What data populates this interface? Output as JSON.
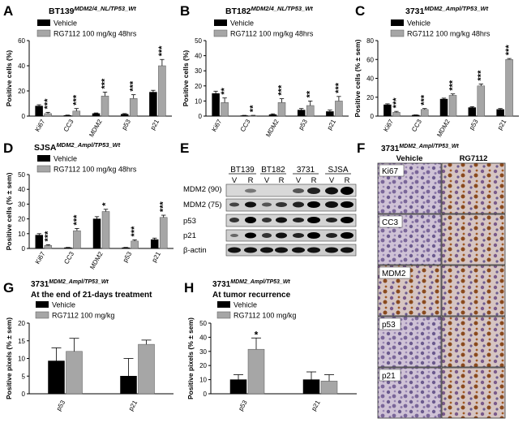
{
  "panels": {
    "A": {
      "letter": "A",
      "title_main": "BT139",
      "title_sup": "MDM2/4_NL/TP53_Wt"
    },
    "B": {
      "letter": "B",
      "title_main": "BT182",
      "title_sup": "MDM2/4_NL/TP53_Wt"
    },
    "C": {
      "letter": "C",
      "title_main": "3731",
      "title_sup": "MDM2_Ampl/TP53_Wt"
    },
    "D": {
      "letter": "D",
      "title_main": "SJSA",
      "title_sup": "MDM2_Ampl/TP53_Wt"
    },
    "E": {
      "letter": "E"
    },
    "F": {
      "letter": "F",
      "title_main": "3731",
      "title_sup": "MDM2_Ampl/TP53_Wt",
      "col_vehicle": "Vehicle",
      "col_rg": "RG7112"
    },
    "G": {
      "letter": "G",
      "title_main": "3731",
      "title_sup": "MDM2_Ampl/TP53_Wt",
      "subtitle": "At the end of 21-days treatment"
    },
    "H": {
      "letter": "H",
      "title_main": "3731",
      "title_sup": "MDM2_Ampl/TP53_Wt",
      "subtitle": "At tumor recurrence"
    }
  },
  "legend": {
    "vehicle": "Vehicle",
    "rg_48": "RG7112 100 mg/kg 48hrs",
    "rg": "RG7112 100 mg/kg"
  },
  "colors": {
    "vehicle": "#000000",
    "rg7112": "#a6a6a6"
  },
  "blot": {
    "groups": [
      "BT139",
      "BT182",
      "3731",
      "SJSA"
    ],
    "lanes": [
      "V",
      "R"
    ],
    "rows": [
      "MDM2 (90)",
      "MDM2 (75)",
      "p53",
      "p21",
      "β-actin"
    ]
  },
  "ihc_rows": [
    "Ki67",
    "CC3",
    "MDM2",
    "p53",
    "p21"
  ],
  "chart_data": [
    {
      "panel": "A",
      "type": "bar",
      "ylabel": "Positive cells (%)",
      "categories": [
        "Ki67",
        "CC3",
        "MDM2",
        "p53",
        "p21"
      ],
      "ylim": [
        0,
        60
      ],
      "yticks": [
        0,
        20,
        40,
        60
      ],
      "series": [
        {
          "name": "Vehicle",
          "values": [
            8,
            0.5,
            2,
            1.5,
            19
          ],
          "err": [
            1,
            0.3,
            0.5,
            0.5,
            1.5
          ]
        },
        {
          "name": "RG7112 100 mg/kg 48hrs",
          "values": [
            2,
            4,
            16,
            14,
            40
          ],
          "err": [
            1,
            2,
            3,
            3,
            5
          ]
        }
      ],
      "sig": [
        "***",
        "***",
        "***",
        "***",
        "***"
      ]
    },
    {
      "panel": "B",
      "type": "bar",
      "ylabel": "Positive cells (%)",
      "categories": [
        "Ki67",
        "CC3",
        "MDM2",
        "p53",
        "p21"
      ],
      "ylim": [
        0,
        50
      ],
      "yticks": [
        0,
        10,
        20,
        30,
        40,
        50
      ],
      "series": [
        {
          "name": "Vehicle",
          "values": [
            15,
            0.3,
            1,
            4,
            3
          ],
          "err": [
            1.5,
            0.2,
            0.5,
            1,
            1
          ]
        },
        {
          "name": "RG7112 100 mg/kg 48hrs",
          "values": [
            9,
            0.3,
            9,
            7,
            10
          ],
          "err": [
            3,
            0.2,
            2.5,
            3,
            3
          ]
        }
      ],
      "sig": [
        "**",
        "**",
        "***",
        "**",
        "***"
      ]
    },
    {
      "panel": "C",
      "type": "bar",
      "ylabel": "Positive cells (% ± sem)",
      "categories": [
        "Ki67",
        "CC3",
        "MDM2",
        "p53",
        "p21"
      ],
      "ylim": [
        0,
        80
      ],
      "yticks": [
        0,
        20,
        40,
        60,
        80
      ],
      "series": [
        {
          "name": "Vehicle",
          "values": [
            12,
            1,
            18,
            9,
            7
          ],
          "err": [
            1,
            0.3,
            1,
            1,
            1
          ]
        },
        {
          "name": "RG7112 100 mg/kg 48hrs",
          "values": [
            4,
            7,
            22,
            32,
            60
          ],
          "err": [
            1,
            1,
            1.5,
            2,
            1
          ]
        }
      ],
      "sig": [
        "***",
        "***",
        "***",
        "***",
        "***"
      ]
    },
    {
      "panel": "D",
      "type": "bar",
      "ylabel": "Positive cells (% ± sem)",
      "categories": [
        "Ki67",
        "CC3",
        "MDM2",
        "p53",
        "p21"
      ],
      "ylim": [
        0,
        50
      ],
      "yticks": [
        0,
        10,
        20,
        30,
        40,
        50
      ],
      "series": [
        {
          "name": "Vehicle",
          "values": [
            9,
            0.5,
            20,
            0.5,
            6
          ],
          "err": [
            1,
            0.2,
            1.5,
            0.2,
            1
          ]
        },
        {
          "name": "RG7112 100 mg/kg 48hrs",
          "values": [
            2,
            12,
            25,
            5,
            21
          ],
          "err": [
            0.5,
            1.5,
            1.5,
            0.8,
            1.5
          ]
        }
      ],
      "sig": [
        "***",
        "***",
        "*",
        "***",
        "***"
      ]
    },
    {
      "panel": "G",
      "type": "bar",
      "ylabel": "Positive pixels (% ± sem)",
      "categories": [
        "p53",
        "p21"
      ],
      "ylim": [
        0,
        20
      ],
      "yticks": [
        0,
        5,
        10,
        15,
        20
      ],
      "series": [
        {
          "name": "Vehicle",
          "values": [
            9.3,
            5
          ],
          "err": [
            3.7,
            5
          ]
        },
        {
          "name": "RG7112 100 mg/kg",
          "values": [
            12,
            14
          ],
          "err": [
            3.7,
            1.2
          ]
        }
      ],
      "sig": [
        "",
        ""
      ]
    },
    {
      "panel": "H",
      "type": "bar",
      "ylabel": "Positive pixels (% ± sem)",
      "categories": [
        "p53",
        "p21"
      ],
      "ylim": [
        0,
        50
      ],
      "yticks": [
        0,
        10,
        20,
        30,
        40,
        50
      ],
      "series": [
        {
          "name": "Vehicle",
          "values": [
            10,
            10
          ],
          "err": [
            3.5,
            5.5
          ]
        },
        {
          "name": "RG7112 100 mg/kg",
          "values": [
            31.5,
            9
          ],
          "err": [
            8,
            4.5
          ]
        }
      ],
      "sig": [
        "*",
        ""
      ]
    }
  ]
}
